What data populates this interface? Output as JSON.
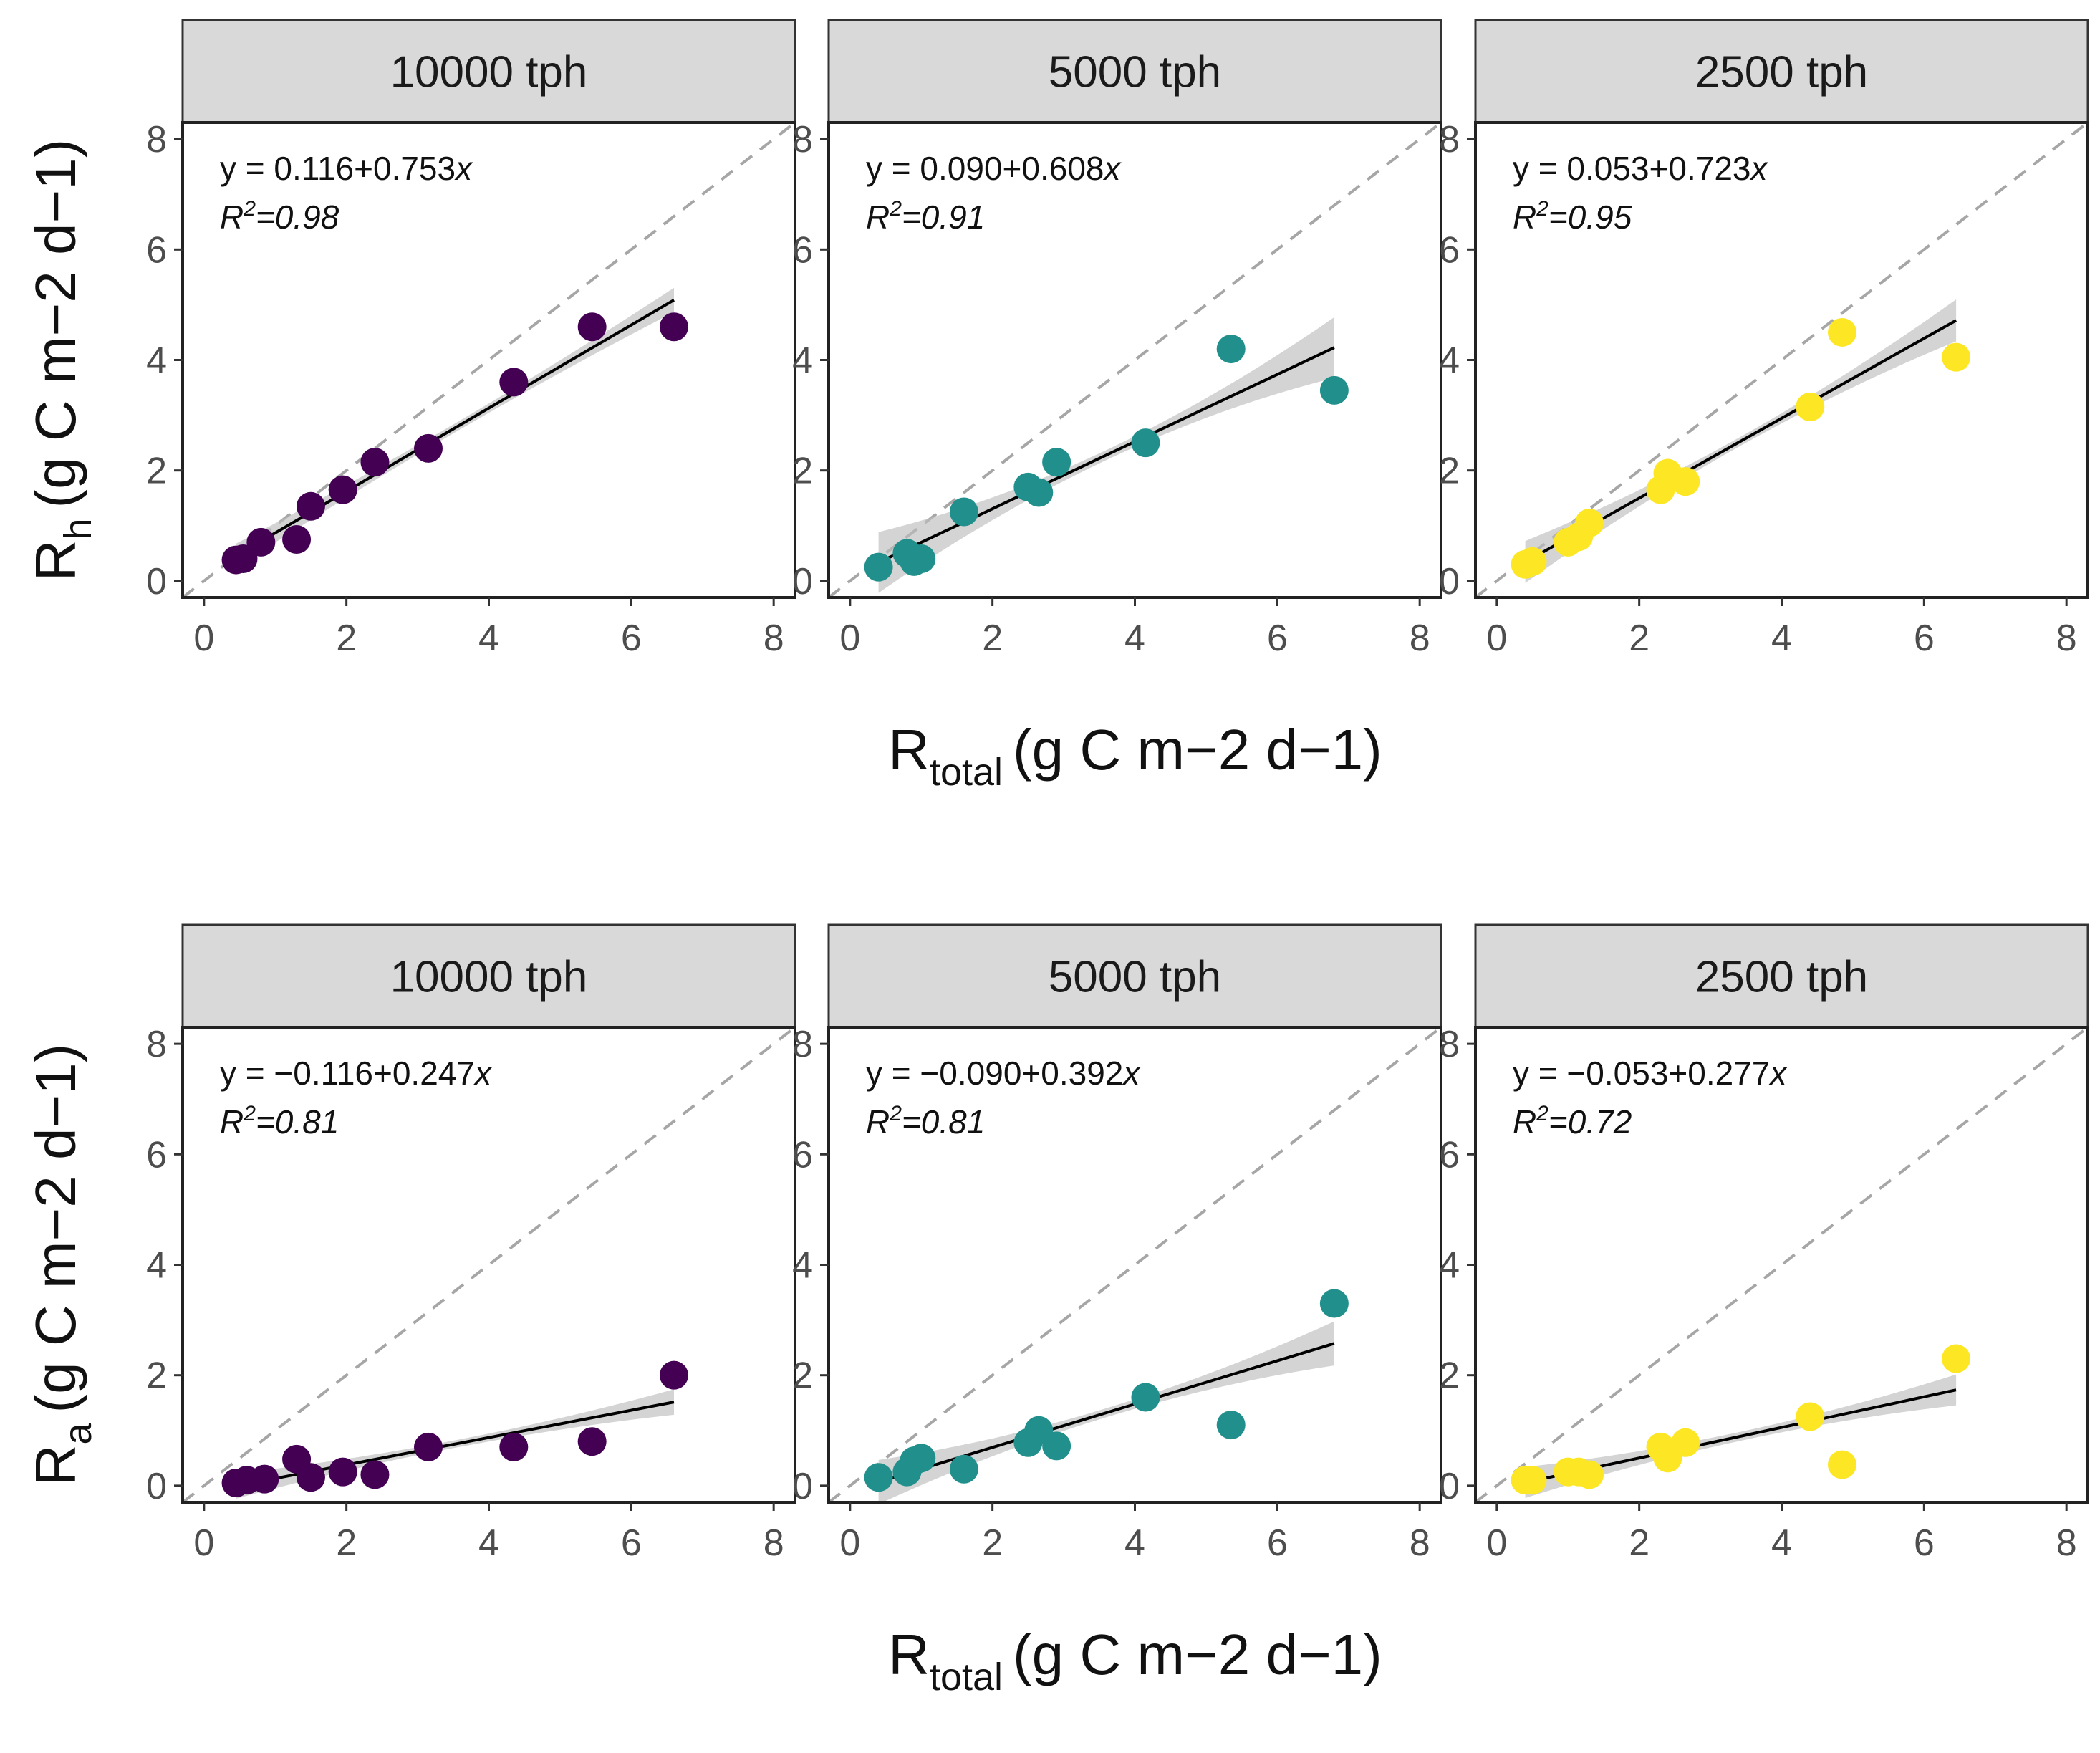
{
  "chart_data": {
    "type": "scatter",
    "facet_labels": [
      "10000 tph",
      "5000 tph",
      "2500 tph"
    ],
    "colors": {
      "10000 tph": "#440154",
      "5000 tph": "#21908c",
      "2500 tph": "#fde725"
    },
    "x_axis": {
      "title_main": "R",
      "title_sub": "total",
      "title_units": "(g C m−2 d−1)",
      "ticks": [
        "0",
        "2",
        "4",
        "6",
        "8"
      ],
      "xlim": [
        -0.3,
        8.3
      ]
    },
    "y_axis_ticks": [
      "0",
      "2",
      "4",
      "6",
      "8"
    ],
    "ylim": [
      -0.3,
      8.3
    ],
    "rows": [
      {
        "ylabel_main": "R",
        "ylabel_sub": "h",
        "ylabel_units": "(g C m−2 d−1)",
        "panels": [
          {
            "facet": "10000 tph",
            "equation_text": "y = 0.116+0.753",
            "equation_var": "x",
            "r2_label": "R",
            "r2_sup": "2",
            "r2_value": "=0.98",
            "intercept": 0.116,
            "slope": 0.753,
            "fit_range": [
              0.45,
              6.6
            ],
            "ci": [
              0.18,
              0.22
            ],
            "points": [
              [
                0.45,
                0.38
              ],
              [
                0.55,
                0.4
              ],
              [
                0.8,
                0.7
              ],
              [
                1.3,
                0.75
              ],
              [
                1.5,
                1.35
              ],
              [
                1.95,
                1.65
              ],
              [
                2.4,
                2.15
              ],
              [
                3.15,
                2.4
              ],
              [
                4.35,
                3.6
              ],
              [
                5.45,
                4.6
              ],
              [
                6.6,
                4.6
              ]
            ]
          },
          {
            "facet": "5000 tph",
            "equation_text": "y = 0.090+0.608",
            "equation_var": "x",
            "r2_label": "R",
            "r2_sup": "2",
            "r2_value": "=0.91",
            "intercept": 0.09,
            "slope": 0.608,
            "fit_range": [
              0.4,
              6.8
            ],
            "ci": [
              0.2,
              0.55
            ],
            "points": [
              [
                0.4,
                0.25
              ],
              [
                0.8,
                0.5
              ],
              [
                0.9,
                0.35
              ],
              [
                1.0,
                0.4
              ],
              [
                1.6,
                1.25
              ],
              [
                2.5,
                1.7
              ],
              [
                2.65,
                1.6
              ],
              [
                2.9,
                2.15
              ],
              [
                4.15,
                2.5
              ],
              [
                5.35,
                4.2
              ],
              [
                6.8,
                3.45
              ]
            ]
          },
          {
            "facet": "2500 tph",
            "equation_text": "y = 0.053+0.723",
            "equation_var": "x",
            "r2_label": "R",
            "r2_sup": "2",
            "r2_value": "=0.95",
            "intercept": 0.053,
            "slope": 0.723,
            "fit_range": [
              0.4,
              6.45
            ],
            "ci": [
              0.18,
              0.38
            ],
            "points": [
              [
                0.4,
                0.3
              ],
              [
                0.5,
                0.35
              ],
              [
                1.0,
                0.7
              ],
              [
                1.15,
                0.8
              ],
              [
                1.3,
                1.05
              ],
              [
                2.3,
                1.65
              ],
              [
                2.4,
                1.95
              ],
              [
                2.65,
                1.8
              ],
              [
                4.4,
                3.15
              ],
              [
                4.85,
                4.5
              ],
              [
                6.45,
                4.05
              ]
            ]
          }
        ]
      },
      {
        "ylabel_main": "R",
        "ylabel_sub": "a",
        "ylabel_units": "(g C m−2 d−1)",
        "panels": [
          {
            "facet": "10000 tph",
            "equation_text": "y = −0.116+0.247",
            "equation_var": "x",
            "r2_label": "R",
            "r2_sup": "2",
            "r2_value": "=0.81",
            "intercept": -0.116,
            "slope": 0.247,
            "fit_range": [
              0.45,
              6.6
            ],
            "ci": [
              0.15,
              0.23
            ],
            "points": [
              [
                0.45,
                0.05
              ],
              [
                0.6,
                0.1
              ],
              [
                0.85,
                0.12
              ],
              [
                1.3,
                0.48
              ],
              [
                1.5,
                0.15
              ],
              [
                1.95,
                0.25
              ],
              [
                2.4,
                0.2
              ],
              [
                3.15,
                0.7
              ],
              [
                4.35,
                0.7
              ],
              [
                5.45,
                0.8
              ],
              [
                6.6,
                2.0
              ]
            ]
          },
          {
            "facet": "5000 tph",
            "equation_text": "y = −0.090+0.392",
            "equation_var": "x",
            "r2_label": "R",
            "r2_sup": "2",
            "r2_value": "=0.81",
            "intercept": -0.09,
            "slope": 0.392,
            "fit_range": [
              0.4,
              6.8
            ],
            "ci": [
              0.18,
              0.4
            ],
            "points": [
              [
                0.4,
                0.15
              ],
              [
                0.8,
                0.25
              ],
              [
                0.9,
                0.45
              ],
              [
                1.0,
                0.5
              ],
              [
                1.6,
                0.3
              ],
              [
                2.5,
                0.78
              ],
              [
                2.65,
                1.0
              ],
              [
                2.9,
                0.72
              ],
              [
                4.15,
                1.6
              ],
              [
                5.35,
                1.1
              ],
              [
                6.8,
                3.3
              ]
            ]
          },
          {
            "facet": "2500 tph",
            "equation_text": "y = −0.053+0.277",
            "equation_var": "x",
            "r2_label": "R",
            "r2_sup": "2",
            "r2_value": "=0.72",
            "intercept": -0.053,
            "slope": 0.277,
            "fit_range": [
              0.4,
              6.45
            ],
            "ci": [
              0.18,
              0.28
            ],
            "points": [
              [
                0.4,
                0.1
              ],
              [
                0.5,
                0.1
              ],
              [
                1.0,
                0.25
              ],
              [
                1.15,
                0.25
              ],
              [
                1.3,
                0.2
              ],
              [
                2.3,
                0.7
              ],
              [
                2.4,
                0.5
              ],
              [
                2.65,
                0.78
              ],
              [
                4.4,
                1.25
              ],
              [
                4.85,
                0.38
              ],
              [
                6.45,
                2.3
              ]
            ]
          }
        ]
      }
    ]
  }
}
